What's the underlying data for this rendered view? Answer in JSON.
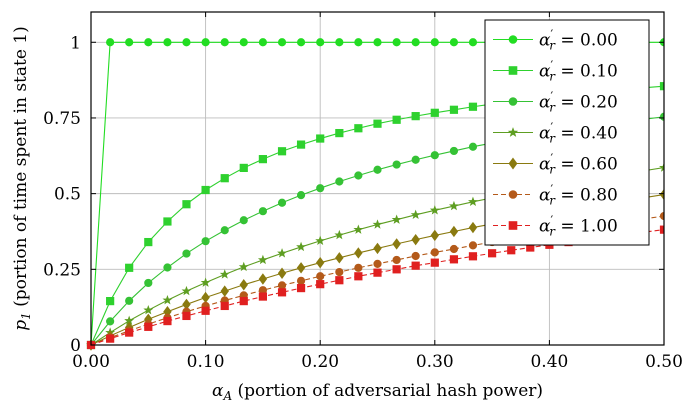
{
  "chart_data": {
    "type": "line",
    "title": "",
    "xlabel": {
      "symbol": "α",
      "sub": "A",
      "text": " (portion of adversarial hash power)"
    },
    "ylabel": {
      "symbol": "p",
      "sub": "1",
      "text": " (portion of time spent in state 1)"
    },
    "xlim": [
      0,
      0.5
    ],
    "ylim": [
      0,
      1.1
    ],
    "grid": true,
    "legend_position": "top-right",
    "x_ticks": [
      {
        "value": 0.0,
        "label": "0.00"
      },
      {
        "value": 0.1,
        "label": "0.10"
      },
      {
        "value": 0.2,
        "label": "0.20"
      },
      {
        "value": 0.3,
        "label": "0.30"
      },
      {
        "value": 0.4,
        "label": "0.40"
      },
      {
        "value": 0.5,
        "label": "0.50"
      }
    ],
    "y_ticks": [
      {
        "value": 0,
        "label": "0"
      },
      {
        "value": 0.25,
        "label": "0.25"
      },
      {
        "value": 0.5,
        "label": "0.5"
      },
      {
        "value": 0.75,
        "label": "0.75"
      },
      {
        "value": 1,
        "label": "1"
      }
    ],
    "x": [
      0,
      0.0167,
      0.0333,
      0.05,
      0.0667,
      0.0833,
      0.1,
      0.1167,
      0.1333,
      0.15,
      0.1667,
      0.1833,
      0.2,
      0.2167,
      0.2333,
      0.25,
      0.2667,
      0.2833,
      0.3,
      0.3167,
      0.3333,
      0.35,
      0.3667,
      0.3833,
      0.4,
      0.4167,
      0.4333,
      0.45,
      0.4667,
      0.4833,
      0.5
    ],
    "series": [
      {
        "name": "α′r = 0.00",
        "legend": {
          "symbol": "α",
          "sup": "′",
          "sub": "r",
          "value": " = 0.00"
        },
        "alpha_r": 0.0,
        "color": "#22dd22",
        "marker": "circle",
        "dashed": false,
        "values": [
          0,
          1,
          1,
          1,
          1,
          1,
          1,
          1,
          1,
          1,
          1,
          1,
          1,
          1,
          1,
          1,
          1,
          1,
          1,
          1,
          1,
          1,
          1,
          1,
          1,
          1,
          1,
          1,
          1,
          1,
          1
        ]
      },
      {
        "name": "α′r = 0.10",
        "legend": {
          "symbol": "α",
          "sup": "′",
          "sub": "r",
          "value": " = 0.10"
        },
        "alpha_r": 0.1,
        "color": "#2ed12e",
        "marker": "square",
        "dashed": false,
        "values": [
          0,
          0.145,
          0.255,
          0.34,
          0.408,
          0.465,
          0.512,
          0.551,
          0.585,
          0.614,
          0.64,
          0.662,
          0.682,
          0.7,
          0.716,
          0.731,
          0.744,
          0.756,
          0.767,
          0.777,
          0.787,
          0.796,
          0.804,
          0.812,
          0.819,
          0.826,
          0.832,
          0.839,
          0.845,
          0.85,
          0.855
        ]
      },
      {
        "name": "α′r = 0.20",
        "legend": {
          "symbol": "α",
          "sup": "′",
          "sub": "r",
          "value": " = 0.20"
        },
        "alpha_r": 0.2,
        "color": "#35c235",
        "marker": "circle",
        "dashed": false,
        "values": [
          0,
          0.078,
          0.146,
          0.205,
          0.256,
          0.302,
          0.343,
          0.379,
          0.412,
          0.442,
          0.47,
          0.495,
          0.518,
          0.54,
          0.56,
          0.579,
          0.596,
          0.612,
          0.627,
          0.641,
          0.655,
          0.667,
          0.679,
          0.69,
          0.701,
          0.711,
          0.72,
          0.729,
          0.738,
          0.746,
          0.754
        ]
      },
      {
        "name": "α′r = 0.40",
        "legend": {
          "symbol": "α",
          "sup": "′",
          "sub": "r",
          "value": " = 0.40"
        },
        "alpha_r": 0.4,
        "color": "#5e9e22",
        "marker": "star",
        "dashed": false,
        "values": [
          0,
          0.041,
          0.08,
          0.115,
          0.148,
          0.178,
          0.206,
          0.233,
          0.258,
          0.281,
          0.303,
          0.324,
          0.344,
          0.363,
          0.381,
          0.398,
          0.414,
          0.43,
          0.445,
          0.459,
          0.473,
          0.486,
          0.499,
          0.511,
          0.523,
          0.534,
          0.545,
          0.556,
          0.566,
          0.576,
          0.586
        ]
      },
      {
        "name": "α′r = 0.60",
        "legend": {
          "symbol": "α",
          "sup": "′",
          "sub": "r",
          "value": " = 0.60"
        },
        "alpha_r": 0.6,
        "color": "#8a7a10",
        "marker": "diamond",
        "dashed": false,
        "values": [
          0,
          0.03,
          0.058,
          0.085,
          0.11,
          0.134,
          0.157,
          0.178,
          0.199,
          0.218,
          0.237,
          0.255,
          0.272,
          0.288,
          0.304,
          0.319,
          0.334,
          0.348,
          0.362,
          0.375,
          0.388,
          0.4,
          0.412,
          0.424,
          0.435,
          0.446,
          0.457,
          0.467,
          0.477,
          0.487,
          0.497
        ]
      },
      {
        "name": "α′r = 0.80",
        "legend": {
          "symbol": "α",
          "sup": "′",
          "sub": "r",
          "value": " = 0.80"
        },
        "alpha_r": 0.8,
        "color": "#b45a1a",
        "marker": "circle",
        "dashed": true,
        "values": [
          0,
          0.024,
          0.047,
          0.069,
          0.09,
          0.11,
          0.129,
          0.147,
          0.164,
          0.181,
          0.197,
          0.212,
          0.227,
          0.241,
          0.255,
          0.268,
          0.281,
          0.294,
          0.306,
          0.317,
          0.329,
          0.34,
          0.35,
          0.361,
          0.371,
          0.381,
          0.39,
          0.399,
          0.408,
          0.417,
          0.426
        ]
      },
      {
        "name": "α′r = 1.00",
        "legend": {
          "symbol": "α",
          "sup": "′",
          "sub": "r",
          "value": " = 1.00"
        },
        "alpha_r": 1.0,
        "color": "#e02020",
        "marker": "square",
        "dashed": true,
        "values": [
          0,
          0.021,
          0.041,
          0.06,
          0.079,
          0.096,
          0.113,
          0.129,
          0.145,
          0.16,
          0.174,
          0.188,
          0.201,
          0.214,
          0.227,
          0.239,
          0.25,
          0.262,
          0.272,
          0.283,
          0.293,
          0.303,
          0.313,
          0.322,
          0.331,
          0.34,
          0.349,
          0.357,
          0.365,
          0.373,
          0.381
        ]
      }
    ]
  }
}
